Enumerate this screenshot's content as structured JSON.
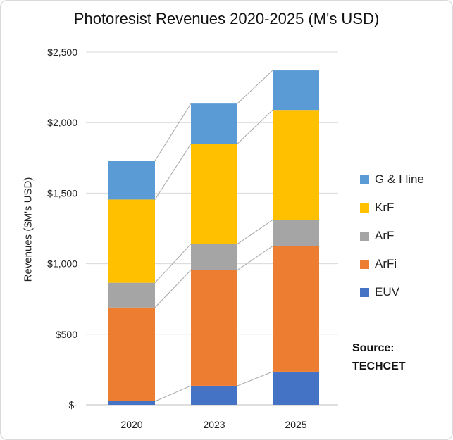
{
  "chart_data": {
    "type": "bar",
    "stacked": true,
    "title": "Photoresist Revenues 2020-2025 (M's USD)",
    "xlabel": "",
    "ylabel": "Revenues ($M's USD)",
    "categories": [
      "2020",
      "2023",
      "2025"
    ],
    "ylim": [
      0,
      2500
    ],
    "yticks": [
      0,
      500,
      1000,
      1500,
      2000,
      2500
    ],
    "ytick_labels": [
      "$-",
      "$500",
      "$1,000",
      "$1,500",
      "$2,000",
      "$2,500"
    ],
    "grid": true,
    "legend_position": "right",
    "series": [
      {
        "name": "EUV",
        "color": "#4472C4",
        "values": [
          25,
          135,
          235
        ]
      },
      {
        "name": "ArFi",
        "color": "#ED7D31",
        "values": [
          665,
          820,
          890
        ]
      },
      {
        "name": "ArF",
        "color": "#A5A5A5",
        "values": [
          175,
          185,
          185
        ]
      },
      {
        "name": "KrF",
        "color": "#FFC000",
        "values": [
          590,
          710,
          780
        ]
      },
      {
        "name": "G & I line",
        "color": "#5B9BD5",
        "values": [
          275,
          285,
          280
        ]
      }
    ],
    "source_label": "Source:",
    "source_name": "TECHCET"
  }
}
